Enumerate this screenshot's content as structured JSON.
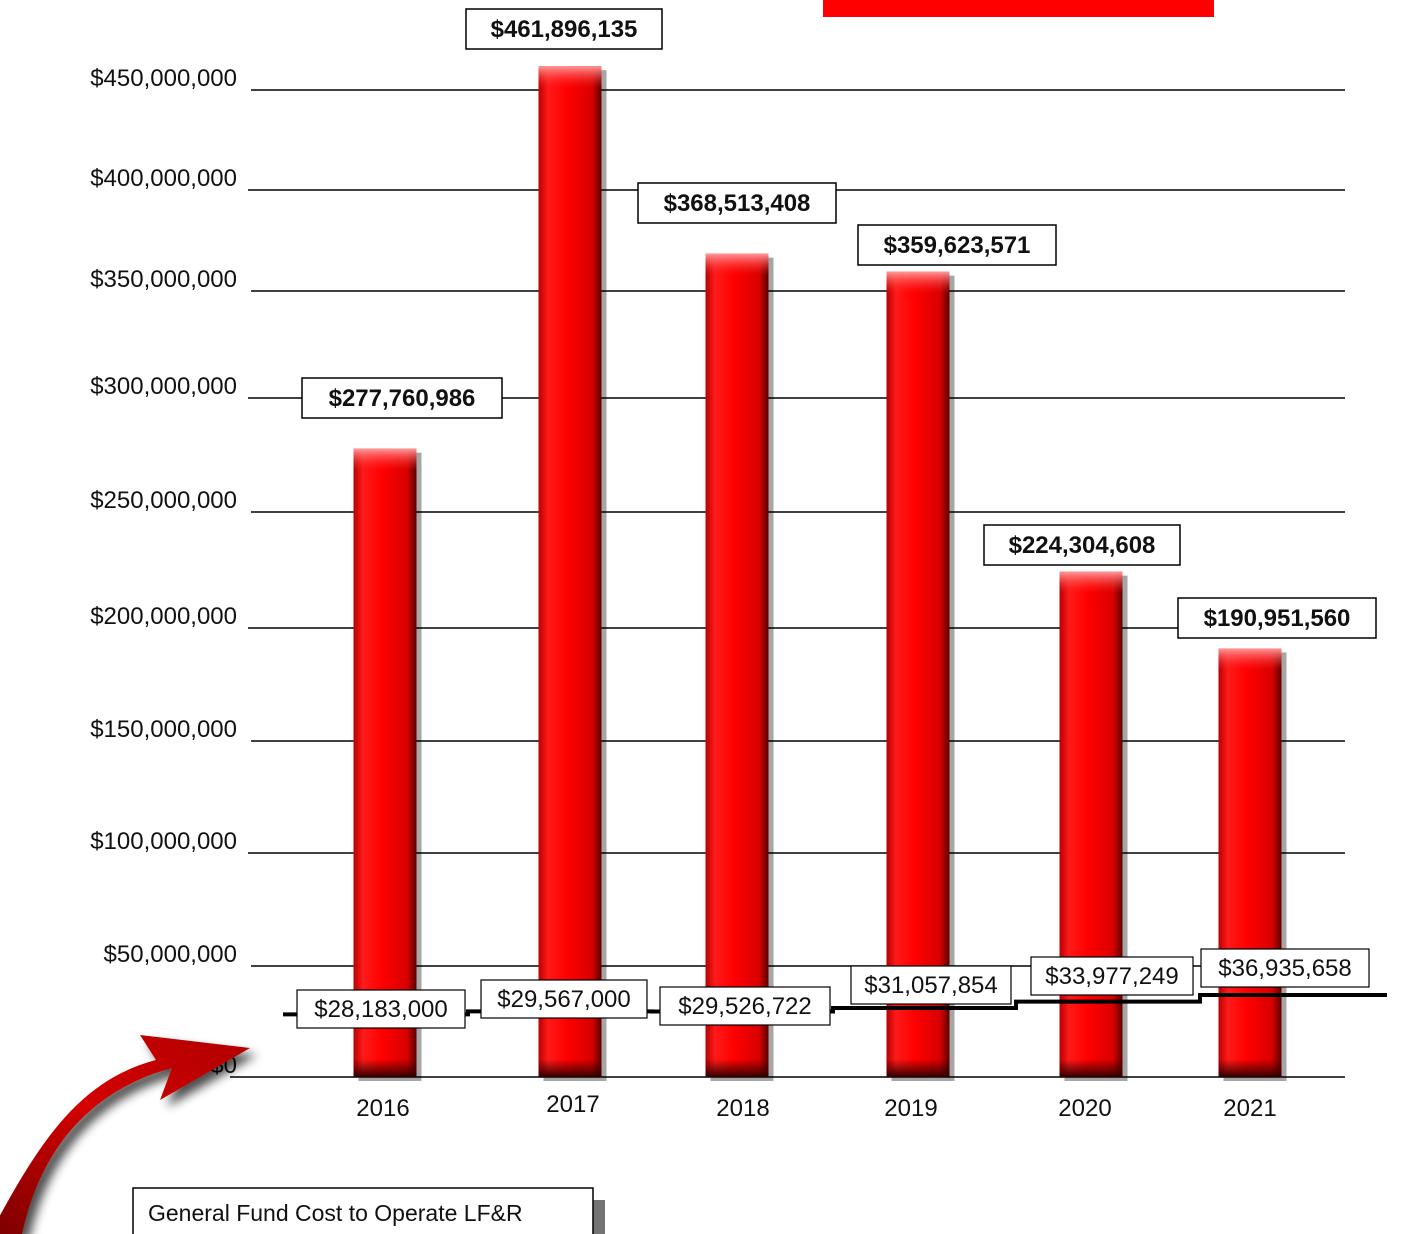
{
  "chart_data": {
    "type": "bar",
    "categories": [
      "2016",
      "2017",
      "2018",
      "2019",
      "2020",
      "2021"
    ],
    "series": [
      {
        "values": [
          277760986,
          461896135,
          368513408,
          359623571,
          224304608,
          190951560
        ]
      },
      {
        "name": "General Fund Cost to Operate LF&R",
        "values": [
          28183000,
          29567000,
          29526722,
          31057854,
          33977249,
          36935658
        ]
      }
    ],
    "bar_labels": [
      "$277,760,986",
      "$461,896,135",
      "$368,513,408",
      "$359,623,571",
      "$224,304,608",
      "$190,951,560"
    ],
    "line_labels": [
      "$28,183,000",
      "$29,567,000",
      "$29,526,722",
      "$31,057,854",
      "$33,977,249",
      "$36,935,658"
    ],
    "y_ticks": [
      {
        "value": 0,
        "label": "$0"
      },
      {
        "value": 50000000,
        "label": "$50,000,000"
      },
      {
        "value": 100000000,
        "label": "$100,000,000"
      },
      {
        "value": 150000000,
        "label": "$150,000,000"
      },
      {
        "value": 200000000,
        "label": "$200,000,000"
      },
      {
        "value": 250000000,
        "label": "$250,000,000"
      },
      {
        "value": 300000000,
        "label": "$300,000,000"
      },
      {
        "value": 350000000,
        "label": "$350,000,000"
      },
      {
        "value": 400000000,
        "label": "$400,000,000"
      },
      {
        "value": 450000000,
        "label": "$450,000,000"
      }
    ],
    "ylim": [
      0,
      470000000
    ],
    "grid": true,
    "legend": "bottom-left",
    "colors": {
      "bar": "#ff0000",
      "line": "#000000",
      "title_block": "#ff0000"
    }
  }
}
